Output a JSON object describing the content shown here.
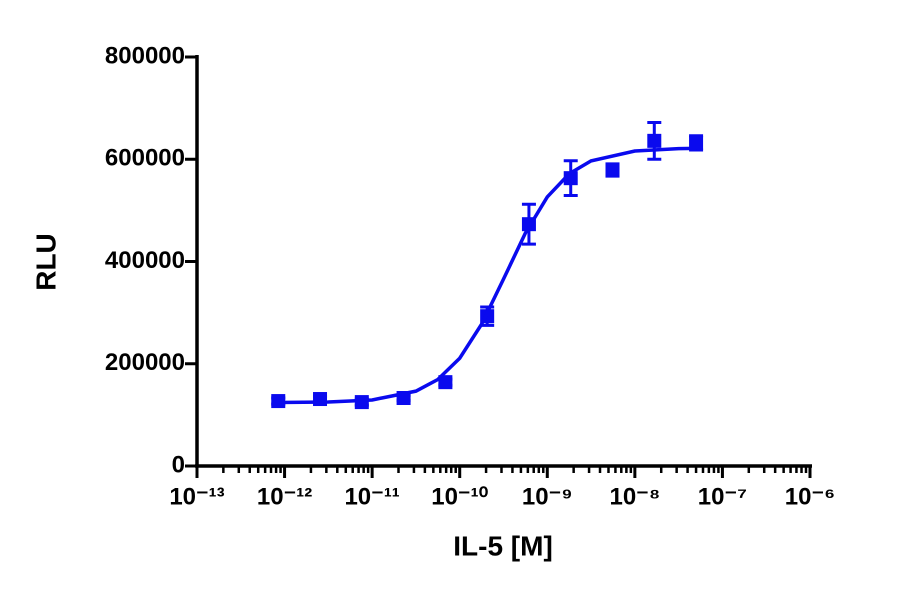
{
  "chart_data": {
    "type": "scatter",
    "x_label": "IL-5 [M]",
    "y_label": "RLU",
    "xscale": "log",
    "xlim": [
      1e-13,
      1e-06
    ],
    "xticks": [
      {
        "value": 1e-13,
        "label": "10⁻¹³"
      },
      {
        "value": 1e-12,
        "label": "10⁻¹²"
      },
      {
        "value": 1e-11,
        "label": "10⁻¹¹"
      },
      {
        "value": 1e-10,
        "label": "10⁻¹⁰"
      },
      {
        "value": 1e-09,
        "label": "10⁻⁹"
      },
      {
        "value": 1e-08,
        "label": "10⁻⁸"
      },
      {
        "value": 1e-07,
        "label": "10⁻⁷"
      },
      {
        "value": 1e-06,
        "label": "10⁻⁶"
      }
    ],
    "xminorticks": [
      2e-13,
      3e-13,
      4e-13,
      5e-13,
      6e-13,
      7e-13,
      8e-13,
      9e-13,
      2e-12,
      3e-12,
      4e-12,
      5e-12,
      6e-12,
      7e-12,
      8e-12,
      9e-12,
      2e-11,
      3e-11,
      4e-11,
      5e-11,
      6e-11,
      7e-11,
      8e-11,
      9e-11,
      2e-10,
      3e-10,
      4e-10,
      5e-10,
      6e-10,
      7e-10,
      8e-10,
      9e-10,
      2e-09,
      3e-09,
      4e-09,
      5e-09,
      6e-09,
      7e-09,
      8e-09,
      9e-09,
      2e-08,
      3e-08,
      4e-08,
      5e-08,
      6e-08,
      7e-08,
      8e-08,
      9e-08,
      2e-07,
      3e-07,
      4e-07,
      5e-07,
      6e-07,
      7e-07,
      8e-07,
      9e-07
    ],
    "ylim": [
      0,
      800000
    ],
    "yticks": [
      0,
      200000,
      400000,
      600000,
      800000
    ],
    "grid": false,
    "series": [
      {
        "type": "scatter",
        "color": "#0a0aee",
        "x": [
          8.47e-13,
          2.54e-12,
          7.62e-12,
          2.286e-11,
          6.86e-11,
          2.058e-10,
          6.173e-10,
          1.852e-09,
          5.556e-09,
          1.667e-08,
          5e-08
        ],
        "values": [
          127000,
          131000,
          125000,
          133000,
          164000,
          293000,
          473000,
          563000,
          579000,
          636000,
          632000
        ],
        "errors": [
          6000,
          5000,
          6000,
          5000,
          6000,
          18000,
          39000,
          34000,
          12000,
          36000,
          14000
        ]
      },
      {
        "type": "line",
        "color": "#0a0aee",
        "x": [
          8.5e-13,
          3.16e-12,
          1e-11,
          3.16e-11,
          5.62e-11,
          1e-10,
          1.78e-10,
          3.16e-10,
          5.62e-10,
          1e-09,
          1.78e-09,
          3.16e-09,
          1e-08,
          3.16e-08,
          5e-08
        ],
        "values": [
          124200,
          125200,
          129200,
          146400,
          169200,
          210800,
          277500,
          365500,
          455500,
          526200,
          571600,
          596800,
          616100,
          620700,
          621300
        ]
      }
    ]
  }
}
